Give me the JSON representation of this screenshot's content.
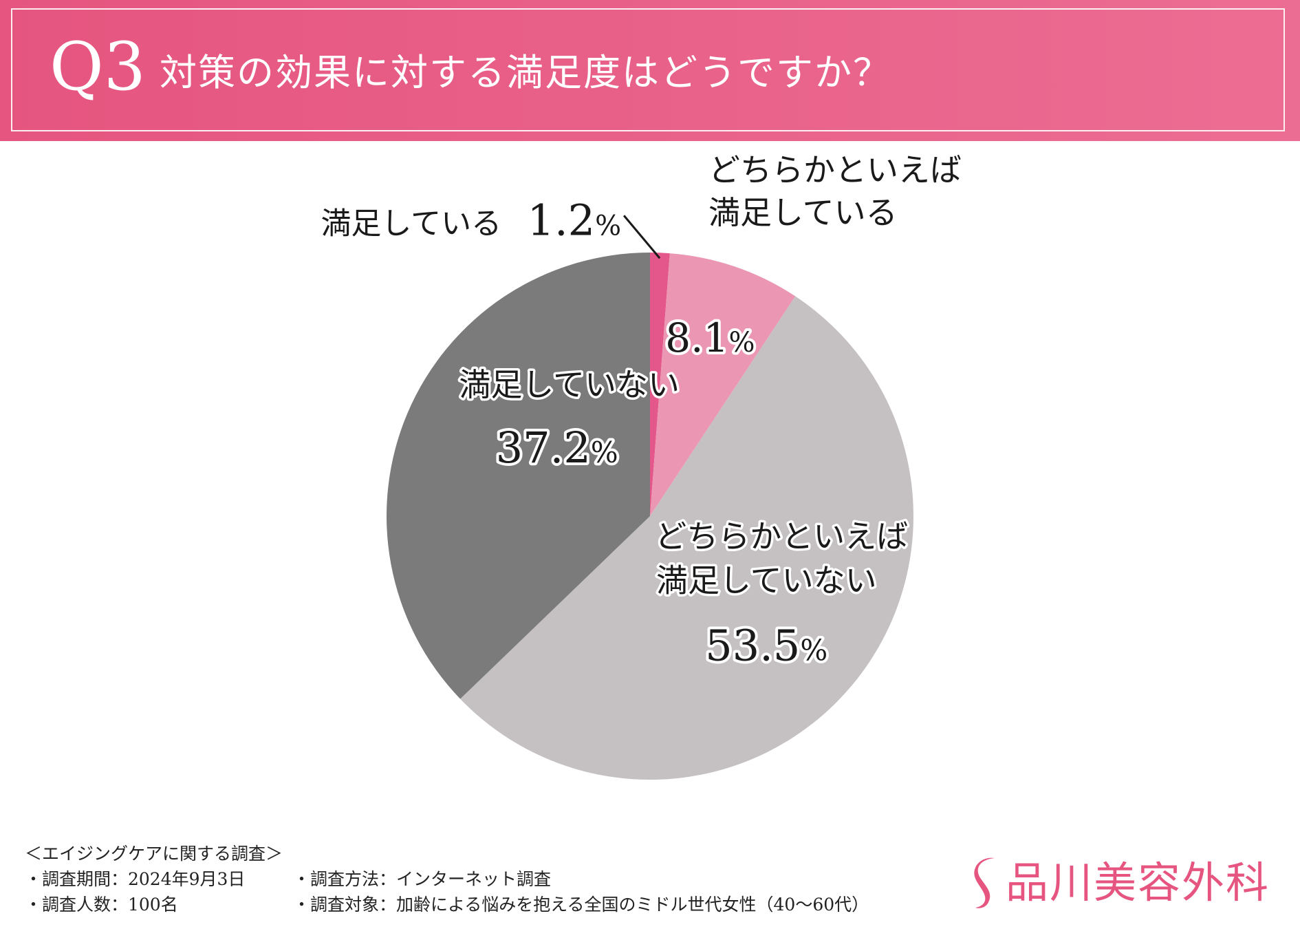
{
  "header": {
    "question_number": "Q3",
    "title": "対策の効果に対する満足度はどうですか？"
  },
  "colors": {
    "header_start": "#e5557f",
    "header_end": "#ec6d93",
    "brand": "#e5557f"
  },
  "chart_data": {
    "type": "pie",
    "title": "対策の効果に対する満足度はどうですか？",
    "start_angle": "12 o'clock",
    "direction": "clockwise",
    "slices": [
      {
        "label": "満足している",
        "value": 1.2,
        "value_label": "1.2",
        "unit": "%",
        "color": "#e4578a"
      },
      {
        "label": "どちらかといえば満足している",
        "label_lines": [
          "どちらかといえば",
          "満足している"
        ],
        "value": 8.1,
        "value_label": "8.1",
        "unit": "%",
        "color": "#eb97b3"
      },
      {
        "label": "どちらかといえば満足していない",
        "label_lines": [
          "どちらかといえば",
          "満足していない"
        ],
        "value": 53.5,
        "value_label": "53.5",
        "unit": "%",
        "color": "#c5c1c2"
      },
      {
        "label": "満足していない",
        "value": 37.2,
        "value_label": "37.2",
        "unit": "%",
        "color": "#7b7b7b"
      }
    ]
  },
  "footer": {
    "survey_title": "＜エイジングケアに関する調査＞",
    "period": "・調査期間：2024年9月3日",
    "method": "・調査方法：インターネット調査",
    "count": "・調査人数：100名",
    "target": "・調査対象：加齢による悩みを抱える全国のミドル世代女性（40～60代）"
  },
  "logo": {
    "text": "品川美容外科",
    "icon": "s-swoosh-logo-icon"
  }
}
